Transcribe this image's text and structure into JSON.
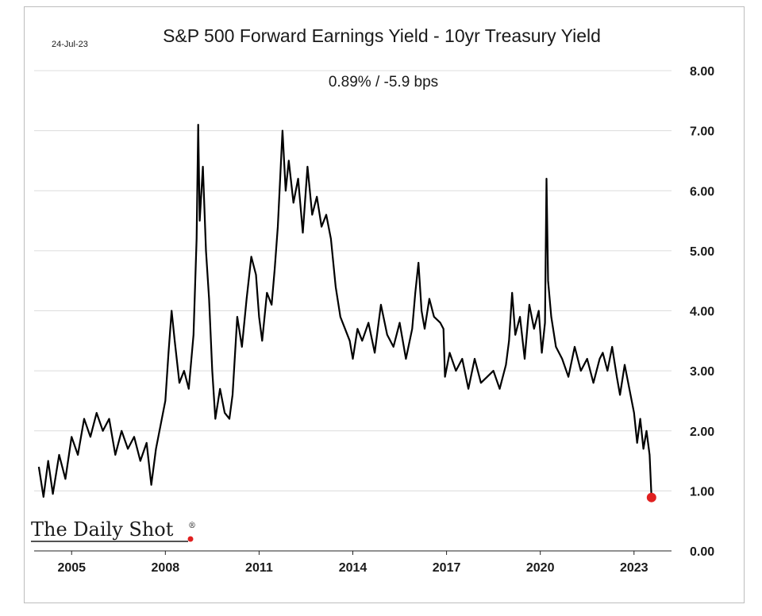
{
  "chart_data": {
    "type": "line",
    "title": "S&P 500 Forward Earnings Yield - 10yr Treasury Yield",
    "subtitle": "0.89%  /  -5.9 bps",
    "date_label": "24-Jul-23",
    "source_label": "The Daily Shot",
    "source_mark": "®",
    "ylim": [
      0,
      8
    ],
    "y_ticks": [
      "0.00",
      "1.00",
      "2.00",
      "3.00",
      "4.00",
      "5.00",
      "6.00",
      "7.00",
      "8.00"
    ],
    "xlim": [
      2003.8,
      2024.2
    ],
    "x_ticks": [
      "2005",
      "2008",
      "2011",
      "2014",
      "2017",
      "2020",
      "2023"
    ],
    "grid": true,
    "last_point_color": "#e02020",
    "line_color": "#000000",
    "series": [
      {
        "x": [
          2003.95,
          2004.1,
          2004.25,
          2004.4,
          2004.6,
          2004.8,
          2005.0,
          2005.2,
          2005.4,
          2005.6,
          2005.8,
          2006.0,
          2006.2,
          2006.4,
          2006.6,
          2006.8,
          2007.0,
          2007.2,
          2007.4,
          2007.55,
          2007.7,
          2007.85,
          2008.0,
          2008.1,
          2008.2,
          2008.3,
          2008.45,
          2008.6,
          2008.75,
          2008.9,
          2009.0,
          2009.05,
          2009.1,
          2009.2,
          2009.3,
          2009.4,
          2009.5,
          2009.6,
          2009.75,
          2009.9,
          2010.05,
          2010.15,
          2010.3,
          2010.45,
          2010.6,
          2010.75,
          2010.9,
          2011.0,
          2011.1,
          2011.25,
          2011.4,
          2011.5,
          2011.6,
          2011.75,
          2011.85,
          2011.95,
          2012.1,
          2012.25,
          2012.4,
          2012.55,
          2012.7,
          2012.85,
          2013.0,
          2013.15,
          2013.3,
          2013.45,
          2013.6,
          2013.75,
          2013.9,
          2014.0,
          2014.15,
          2014.3,
          2014.5,
          2014.7,
          2014.9,
          2015.1,
          2015.3,
          2015.5,
          2015.7,
          2015.9,
          2016.0,
          2016.1,
          2016.2,
          2016.3,
          2016.45,
          2016.6,
          2016.8,
          2016.9,
          2016.95,
          2017.1,
          2017.3,
          2017.5,
          2017.7,
          2017.9,
          2018.1,
          2018.3,
          2018.5,
          2018.7,
          2018.9,
          2019.0,
          2019.1,
          2019.2,
          2019.35,
          2019.5,
          2019.65,
          2019.8,
          2019.95,
          2020.05,
          2020.15,
          2020.2,
          2020.25,
          2020.35,
          2020.5,
          2020.7,
          2020.9,
          2021.1,
          2021.3,
          2021.5,
          2021.7,
          2021.9,
          2022.0,
          2022.15,
          2022.3,
          2022.45,
          2022.55,
          2022.7,
          2022.85,
          2023.0,
          2023.1,
          2023.2,
          2023.3,
          2023.4,
          2023.5,
          2023.56
        ],
        "y": [
          1.4,
          0.9,
          1.5,
          0.95,
          1.6,
          1.2,
          1.9,
          1.6,
          2.2,
          1.9,
          2.3,
          2.0,
          2.2,
          1.6,
          2.0,
          1.7,
          1.9,
          1.5,
          1.8,
          1.1,
          1.7,
          2.1,
          2.5,
          3.3,
          4.0,
          3.5,
          2.8,
          3.0,
          2.7,
          3.6,
          5.2,
          7.1,
          5.5,
          6.4,
          5.0,
          4.2,
          3.0,
          2.2,
          2.7,
          2.3,
          2.2,
          2.6,
          3.9,
          3.4,
          4.2,
          4.9,
          4.6,
          3.9,
          3.5,
          4.3,
          4.1,
          4.7,
          5.4,
          7.0,
          6.0,
          6.5,
          5.8,
          6.2,
          5.3,
          6.4,
          5.6,
          5.9,
          5.4,
          5.6,
          5.2,
          4.4,
          3.9,
          3.7,
          3.5,
          3.2,
          3.7,
          3.5,
          3.8,
          3.3,
          4.1,
          3.6,
          3.4,
          3.8,
          3.2,
          3.7,
          4.3,
          4.8,
          4.0,
          3.7,
          4.2,
          3.9,
          3.8,
          3.7,
          2.9,
          3.3,
          3.0,
          3.2,
          2.7,
          3.2,
          2.8,
          2.9,
          3.0,
          2.7,
          3.1,
          3.5,
          4.3,
          3.6,
          3.9,
          3.2,
          4.1,
          3.7,
          4.0,
          3.3,
          3.8,
          6.2,
          4.5,
          3.9,
          3.4,
          3.2,
          2.9,
          3.4,
          3.0,
          3.2,
          2.8,
          3.2,
          3.3,
          3.0,
          3.4,
          2.9,
          2.6,
          3.1,
          2.7,
          2.3,
          1.8,
          2.2,
          1.7,
          2.0,
          1.6,
          0.89
        ]
      }
    ]
  }
}
